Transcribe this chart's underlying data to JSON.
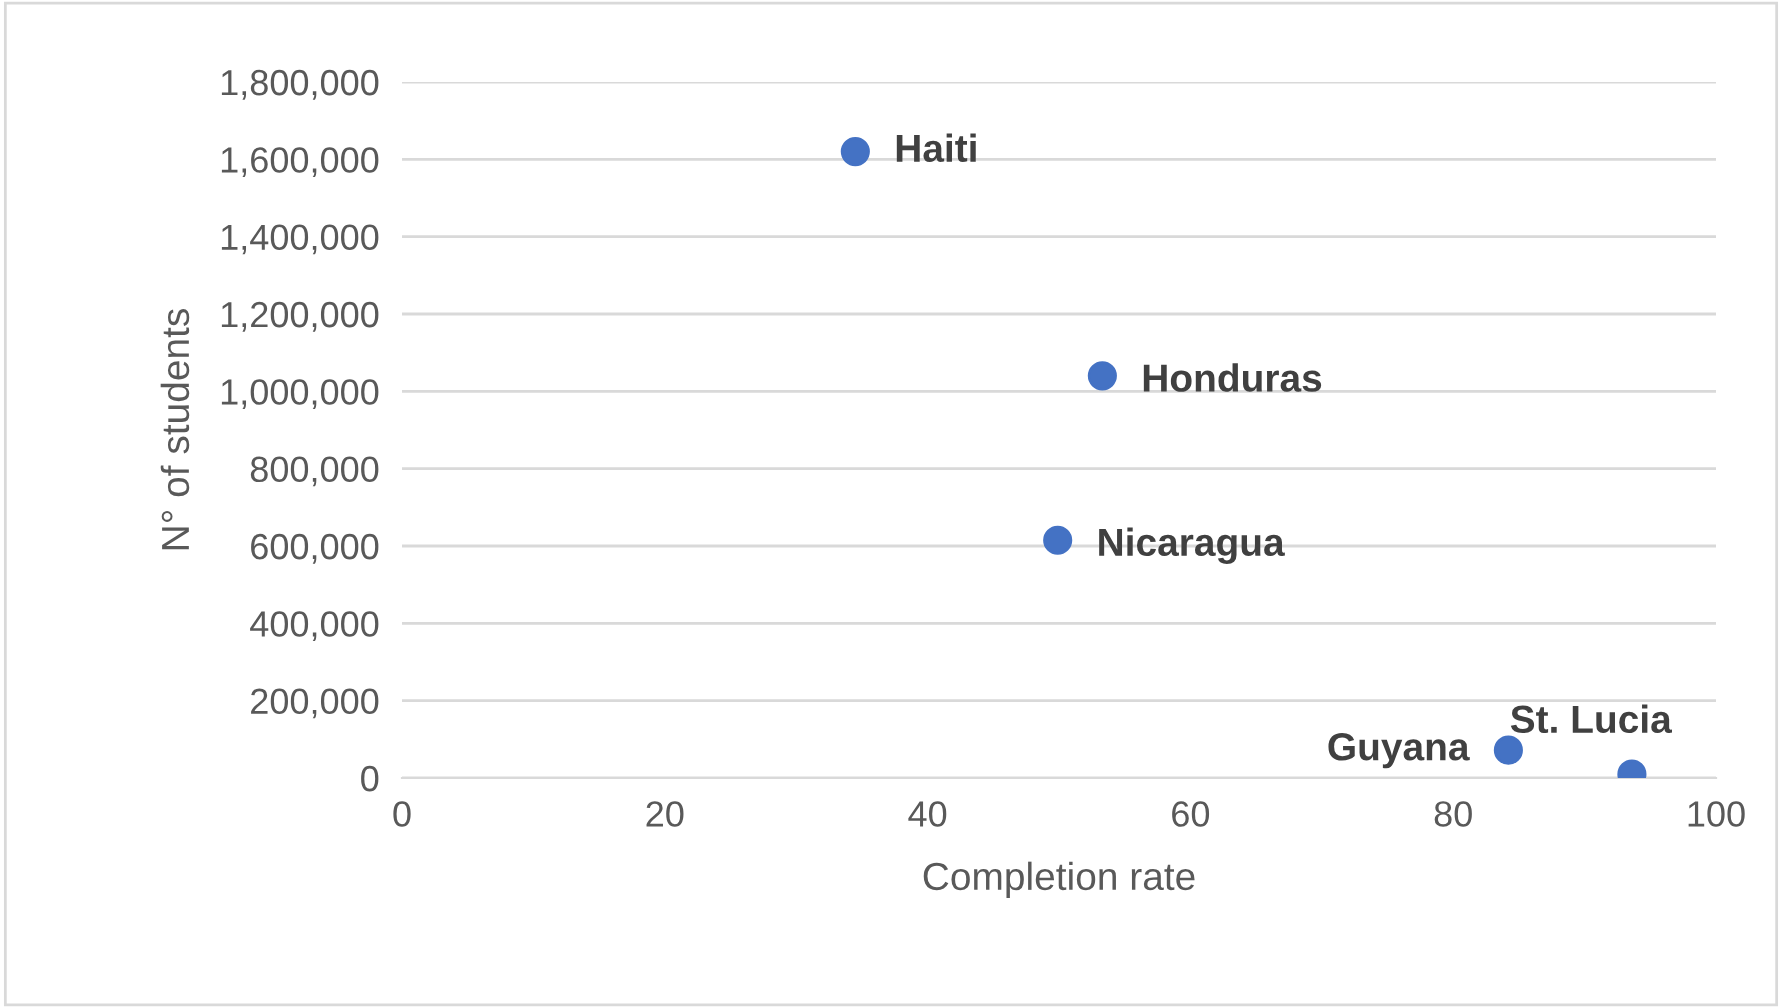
{
  "chart_data": {
    "type": "scatter",
    "xlabel": "Completion rate",
    "ylabel": "N° of students",
    "x": [
      34.5,
      53.3,
      49.9,
      84.2,
      93.6
    ],
    "values": [
      1620000,
      1040000,
      615000,
      72000,
      10000
    ],
    "color": "#4472c4",
    "marker": "circle",
    "grid": "y",
    "legend": false,
    "xlim": [
      0,
      100
    ],
    "xticks": [
      0,
      20,
      40,
      60,
      80,
      100
    ],
    "ylim": [
      0,
      1800000
    ],
    "yticks": [
      {
        "value": 0,
        "label": "0"
      },
      {
        "value": 200000,
        "label": "200,000"
      },
      {
        "value": 400000,
        "label": "400,000"
      },
      {
        "value": 600000,
        "label": "600,000"
      },
      {
        "value": 800000,
        "label": "800,000"
      },
      {
        "value": 1000000,
        "label": "1,000,000"
      },
      {
        "value": 1200000,
        "label": "1,200,000"
      },
      {
        "value": 1400000,
        "label": "1,400,000"
      },
      {
        "value": 1600000,
        "label": "1,600,000"
      },
      {
        "value": 1800000,
        "label": "1,800,000"
      }
    ],
    "annotations": [
      {
        "text": "Haiti",
        "x": 34.5,
        "y": 1620000
      },
      {
        "text": "Honduras",
        "x": 53.3,
        "y": 1040000
      },
      {
        "text": "Nicaragua",
        "x": 49.9,
        "y": 615000
      },
      {
        "text": "Guyana",
        "x": 84.2,
        "y": 72000
      },
      {
        "text": "St. Lucia",
        "x": 93.6,
        "y": 10000
      }
    ]
  }
}
